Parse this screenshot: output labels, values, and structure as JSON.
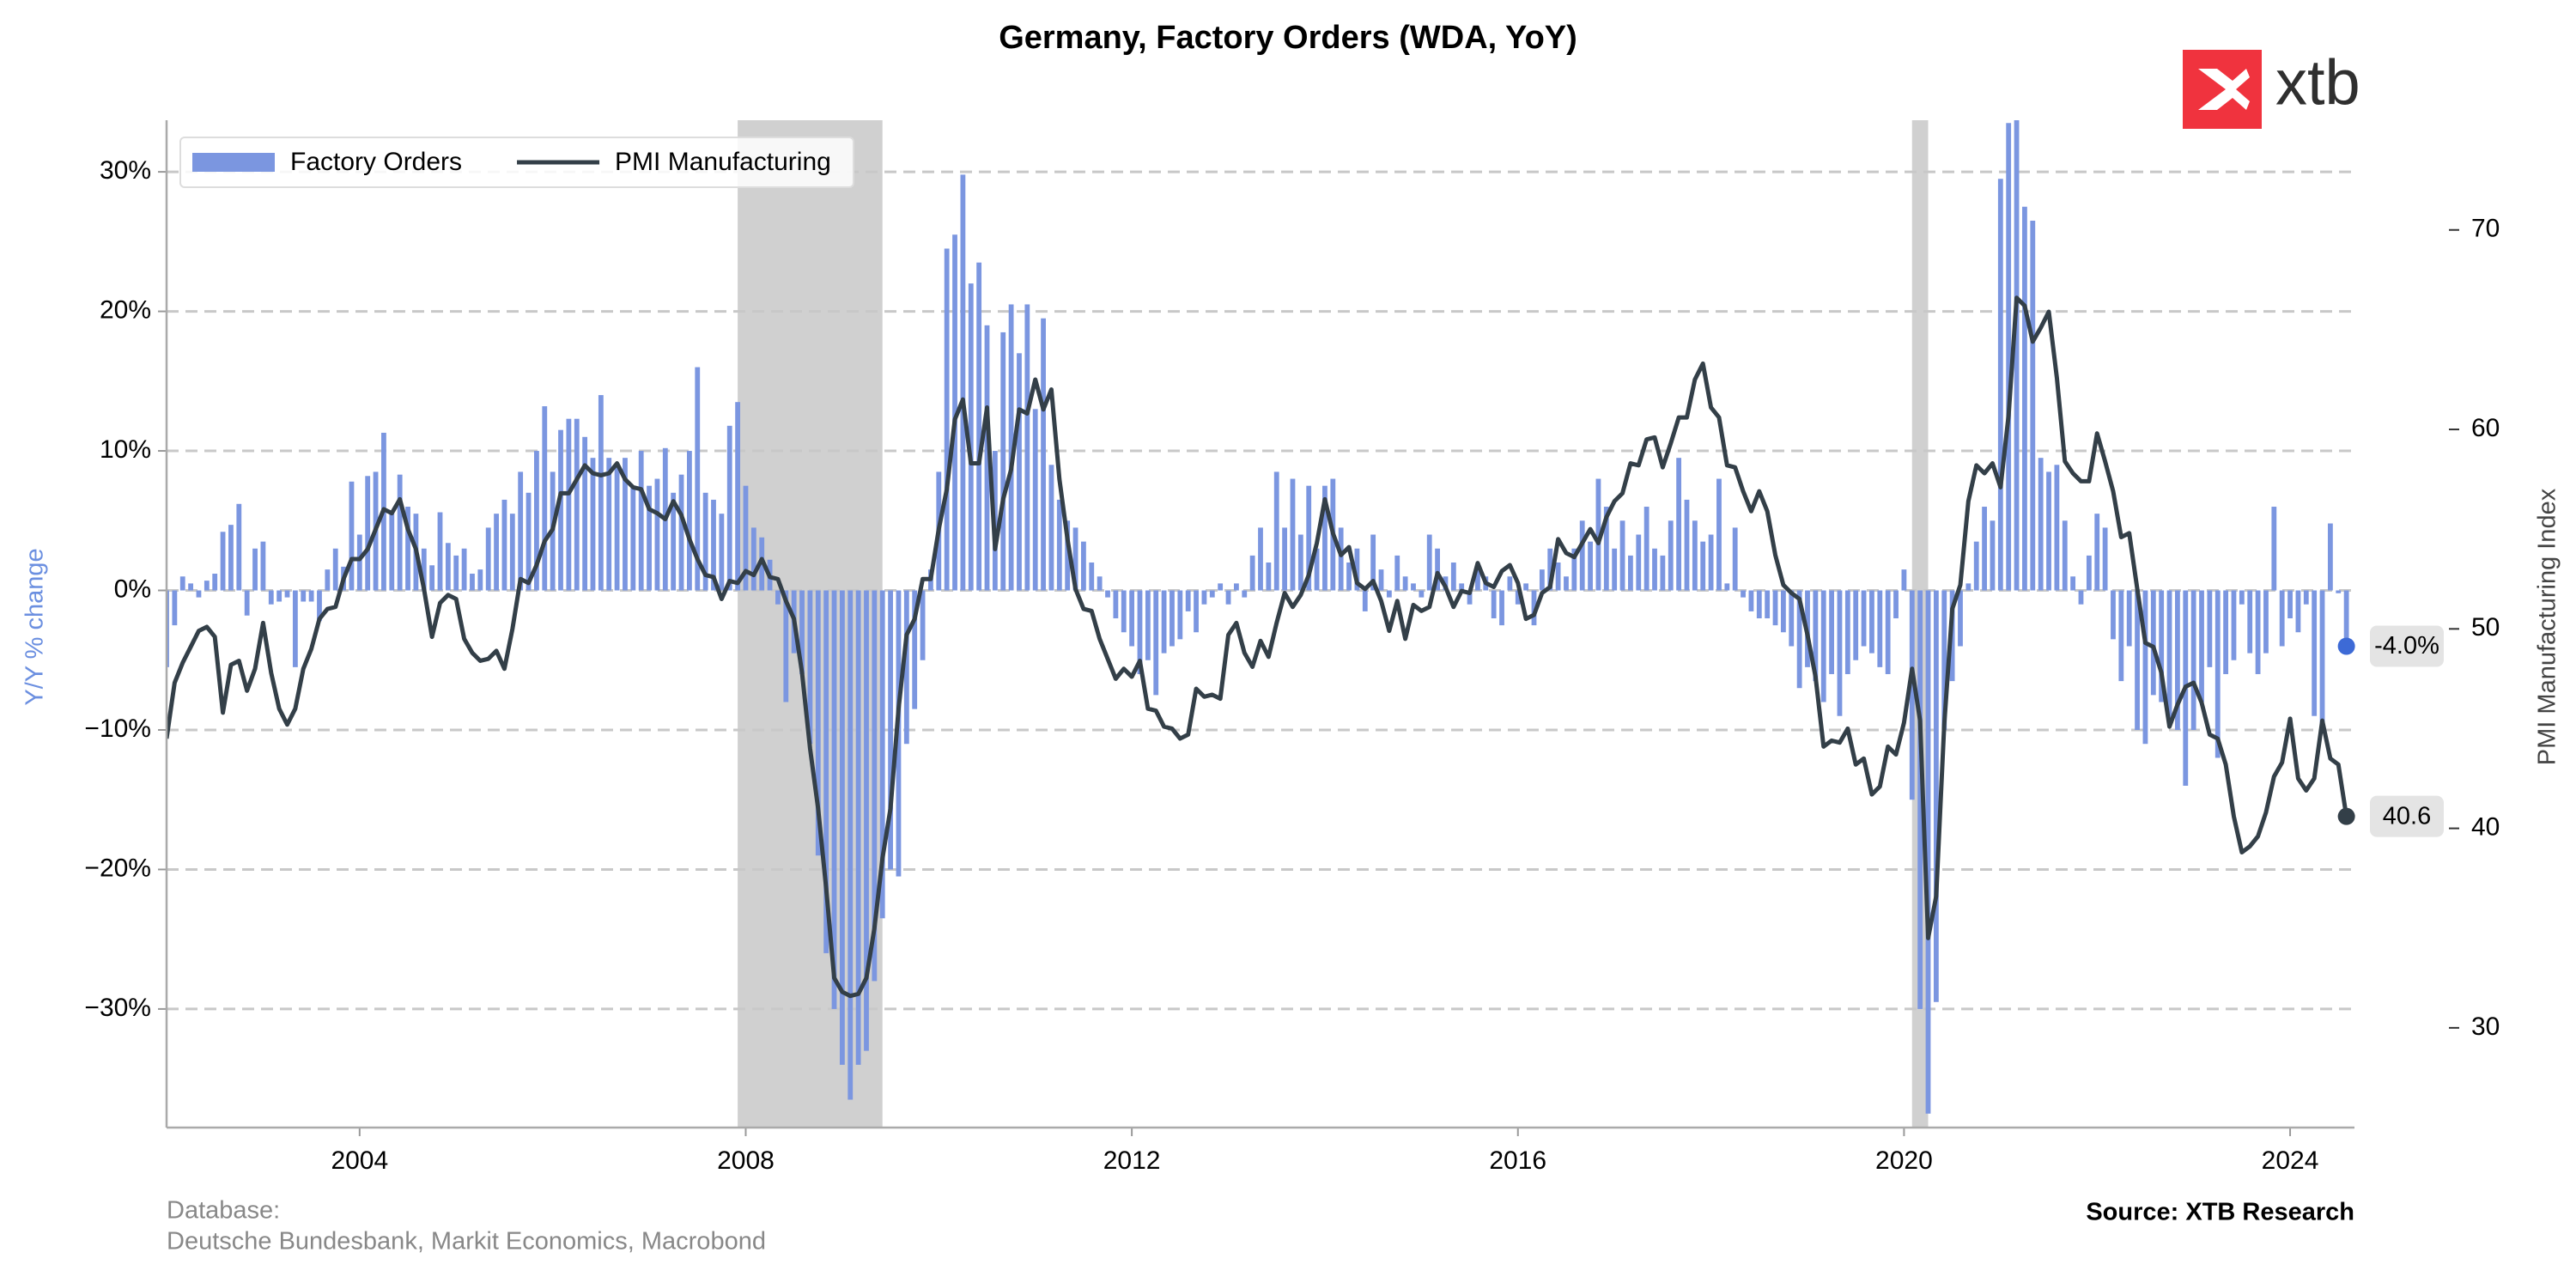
{
  "chart_data": {
    "type": "combo",
    "title": "Germany, Factory Orders (WDA, YoY)",
    "logo": "xtb",
    "ylabel": "Y/Y % change",
    "y2label": "PMI Manufacturing Index",
    "footer_left": [
      "Database:",
      "Deutsche Bundesbank, Markit Economics, Macrobond"
    ],
    "footer_right": "Source: XTB Research",
    "legend": "upper left",
    "grid": true,
    "shaded_periods": [
      [
        "2007-12",
        "2009-06"
      ],
      [
        "2020-02",
        "2020-04"
      ]
    ],
    "shade_color": "#d0d0d0",
    "xlim": [
      "2002-01",
      "2024-09"
    ],
    "xticks": [
      {
        "value": "2004-01",
        "label": "2004"
      },
      {
        "value": "2008-01",
        "label": "2008"
      },
      {
        "value": "2012-01",
        "label": "2012"
      },
      {
        "value": "2016-01",
        "label": "2016"
      },
      {
        "value": "2020-01",
        "label": "2020"
      },
      {
        "value": "2024-01",
        "label": "2024"
      }
    ],
    "ylim": [
      -38.5,
      33.7
    ],
    "yticks": [
      {
        "value": -30,
        "label": "−30%"
      },
      {
        "value": -20,
        "label": "−20%"
      },
      {
        "value": -10,
        "label": "−10%"
      },
      {
        "value": 0,
        "label": "0%"
      },
      {
        "value": 10,
        "label": "10%"
      },
      {
        "value": 20,
        "label": "20%"
      },
      {
        "value": 30,
        "label": "30%"
      }
    ],
    "y2lim": [
      25,
      75.5
    ],
    "y2ticks": [
      30,
      40,
      50,
      60,
      70
    ],
    "x": [
      "2002-01",
      "2002-02",
      "2002-03",
      "2002-04",
      "2002-05",
      "2002-06",
      "2002-07",
      "2002-08",
      "2002-09",
      "2002-10",
      "2002-11",
      "2002-12",
      "2003-01",
      "2003-02",
      "2003-03",
      "2003-04",
      "2003-05",
      "2003-06",
      "2003-07",
      "2003-08",
      "2003-09",
      "2003-10",
      "2003-11",
      "2003-12",
      "2004-01",
      "2004-02",
      "2004-03",
      "2004-04",
      "2004-05",
      "2004-06",
      "2004-07",
      "2004-08",
      "2004-09",
      "2004-10",
      "2004-11",
      "2004-12",
      "2005-01",
      "2005-02",
      "2005-03",
      "2005-04",
      "2005-05",
      "2005-06",
      "2005-07",
      "2005-08",
      "2005-09",
      "2005-10",
      "2005-11",
      "2005-12",
      "2006-01",
      "2006-02",
      "2006-03",
      "2006-04",
      "2006-05",
      "2006-06",
      "2006-07",
      "2006-08",
      "2006-09",
      "2006-10",
      "2006-11",
      "2006-12",
      "2007-01",
      "2007-02",
      "2007-03",
      "2007-04",
      "2007-05",
      "2007-06",
      "2007-07",
      "2007-08",
      "2007-09",
      "2007-10",
      "2007-11",
      "2007-12",
      "2008-01",
      "2008-02",
      "2008-03",
      "2008-04",
      "2008-05",
      "2008-06",
      "2008-07",
      "2008-08",
      "2008-09",
      "2008-10",
      "2008-11",
      "2008-12",
      "2009-01",
      "2009-02",
      "2009-03",
      "2009-04",
      "2009-05",
      "2009-06",
      "2009-07",
      "2009-08",
      "2009-09",
      "2009-10",
      "2009-11",
      "2009-12",
      "2010-01",
      "2010-02",
      "2010-03",
      "2010-04",
      "2010-05",
      "2010-06",
      "2010-07",
      "2010-08",
      "2010-09",
      "2010-10",
      "2010-11",
      "2010-12",
      "2011-01",
      "2011-02",
      "2011-03",
      "2011-04",
      "2011-05",
      "2011-06",
      "2011-07",
      "2011-08",
      "2011-09",
      "2011-10",
      "2011-11",
      "2011-12",
      "2012-01",
      "2012-02",
      "2012-03",
      "2012-04",
      "2012-05",
      "2012-06",
      "2012-07",
      "2012-08",
      "2012-09",
      "2012-10",
      "2012-11",
      "2012-12",
      "2013-01",
      "2013-02",
      "2013-03",
      "2013-04",
      "2013-05",
      "2013-06",
      "2013-07",
      "2013-08",
      "2013-09",
      "2013-10",
      "2013-11",
      "2013-12",
      "2014-01",
      "2014-02",
      "2014-03",
      "2014-04",
      "2014-05",
      "2014-06",
      "2014-07",
      "2014-08",
      "2014-09",
      "2014-10",
      "2014-11",
      "2014-12",
      "2015-01",
      "2015-02",
      "2015-03",
      "2015-04",
      "2015-05",
      "2015-06",
      "2015-07",
      "2015-08",
      "2015-09",
      "2015-10",
      "2015-11",
      "2015-12",
      "2016-01",
      "2016-02",
      "2016-03",
      "2016-04",
      "2016-05",
      "2016-06",
      "2016-07",
      "2016-08",
      "2016-09",
      "2016-10",
      "2016-11",
      "2016-12",
      "2017-01",
      "2017-02",
      "2017-03",
      "2017-04",
      "2017-05",
      "2017-06",
      "2017-07",
      "2017-08",
      "2017-09",
      "2017-10",
      "2017-11",
      "2017-12",
      "2018-01",
      "2018-02",
      "2018-03",
      "2018-04",
      "2018-05",
      "2018-06",
      "2018-07",
      "2018-08",
      "2018-09",
      "2018-10",
      "2018-11",
      "2018-12",
      "2019-01",
      "2019-02",
      "2019-03",
      "2019-04",
      "2019-05",
      "2019-06",
      "2019-07",
      "2019-08",
      "2019-09",
      "2019-10",
      "2019-11",
      "2019-12",
      "2020-01",
      "2020-02",
      "2020-03",
      "2020-04",
      "2020-05",
      "2020-06",
      "2020-07",
      "2020-08",
      "2020-09",
      "2020-10",
      "2020-11",
      "2020-12",
      "2021-01",
      "2021-02",
      "2021-03",
      "2021-04",
      "2021-05",
      "2021-06",
      "2021-07",
      "2021-08",
      "2021-09",
      "2021-10",
      "2021-11",
      "2021-12",
      "2022-01",
      "2022-02",
      "2022-03",
      "2022-04",
      "2022-05",
      "2022-06",
      "2022-07",
      "2022-08",
      "2022-09",
      "2022-10",
      "2022-11",
      "2022-12",
      "2023-01",
      "2023-02",
      "2023-03",
      "2023-04",
      "2023-05",
      "2023-06",
      "2023-07",
      "2023-08",
      "2023-09",
      "2023-10",
      "2023-11",
      "2023-12",
      "2024-01",
      "2024-02",
      "2024-03",
      "2024-04",
      "2024-05",
      "2024-06",
      "2024-07",
      "2024-08"
    ],
    "series": [
      {
        "name": "Factory Orders",
        "type": "bar",
        "axis": "y",
        "color": "#7b96e0",
        "end_color": "#3d6ad6",
        "end_label": "-4.0%",
        "values": [
          -5.5,
          -2.5,
          1,
          0.5,
          -0.5,
          0.7,
          1.2,
          4.2,
          4.7,
          6.2,
          -1.8,
          3.0,
          3.5,
          -1,
          -0.8,
          -0.5,
          -5.5,
          -0.8,
          -0.8,
          -2.2,
          1.5,
          3,
          1.7,
          7.8,
          4,
          8.2,
          8.5,
          11.3,
          5.5,
          8.3,
          6,
          5.5,
          3,
          1.8,
          5.6,
          3.4,
          2.5,
          3,
          1.2,
          1.5,
          4.5,
          5.5,
          6.5,
          5.5,
          8.5,
          7,
          10,
          13.2,
          8.5,
          11.5,
          12.3,
          12.3,
          11,
          9.5,
          14,
          9.5,
          9,
          9.5,
          7.5,
          10,
          7.5,
          8,
          10.2,
          7,
          8.3,
          10,
          16,
          7,
          6.5,
          5.5,
          11.8,
          13.5,
          7.5,
          4.5,
          3.8,
          2.2,
          -1,
          -8,
          -4.5,
          -6,
          -11,
          -19,
          -26,
          -30,
          -34,
          -36.5,
          -34,
          -33,
          -28,
          -23.5,
          -20,
          -20.5,
          -11,
          -8.5,
          -5,
          1.5,
          8.5,
          24.5,
          25.5,
          29.8,
          22,
          23.5,
          19,
          10,
          18.5,
          20.5,
          17,
          20.5,
          13,
          19.5,
          9,
          6.5,
          5,
          4.5,
          3.5,
          2,
          1,
          -0.5,
          -2,
          -3,
          -4,
          -6,
          -5,
          -7.5,
          -4.5,
          -4,
          -3.5,
          -1.5,
          -3,
          -1,
          -0.5,
          0.5,
          -1,
          0.5,
          -0.5,
          2.5,
          4.5,
          2,
          8.5,
          4.5,
          8,
          4,
          7.5,
          3,
          7.5,
          8,
          4.5,
          2,
          3,
          -1.5,
          4,
          1.5,
          -0.5,
          2.5,
          1,
          0.5,
          -0.5,
          4,
          3,
          1,
          2,
          0.5,
          -1,
          1.5,
          1,
          -2,
          -2.5,
          1,
          -1,
          0.5,
          -2.5,
          1.5,
          3,
          2,
          1,
          3,
          5,
          3.5,
          8,
          6,
          3,
          5,
          2.5,
          4,
          6,
          3,
          2.5,
          5,
          9.5,
          6.5,
          5,
          3.5,
          4,
          8,
          0.5,
          4.5,
          -0.5,
          -1.5,
          -2,
          -2,
          -2.5,
          -3,
          -4,
          -7,
          -5.5,
          -6.5,
          -8,
          -6,
          -9,
          -6,
          -5,
          -4,
          -4.5,
          -5.5,
          -6,
          -2,
          1.5,
          -15,
          -30,
          -37.5,
          -29.5,
          -10,
          -6.5,
          -4,
          0.5,
          3.5,
          6,
          5,
          29.5,
          33.5,
          34,
          27.5,
          26.5,
          9.5,
          8.5,
          9,
          5,
          1,
          -1,
          2.5,
          5.5,
          4.5,
          -3.5,
          -6.5,
          -4,
          -10,
          -11,
          -7.5,
          -8,
          -9.5,
          -10,
          -14,
          -10,
          -8,
          -5.5,
          -12,
          -6,
          -5,
          -1,
          -4.5,
          -6,
          -4.5,
          6,
          -4,
          -2,
          -3,
          -1,
          -9,
          -10,
          4.8,
          -0.2,
          -4.0
        ]
      },
      {
        "name": "PMI Manufacturing",
        "type": "line",
        "axis": "y2",
        "color": "#333f48",
        "end_color": "#333f48",
        "end_label": "40.6",
        "values": [
          44.5,
          47.3,
          48.3,
          49.1,
          49.9,
          50.1,
          49.6,
          45.8,
          48.2,
          48.4,
          46.9,
          48.0,
          50.3,
          47.8,
          46,
          45.2,
          46,
          48,
          49,
          50.5,
          51,
          51.1,
          52.5,
          53.5,
          53.5,
          54,
          55,
          56,
          55.8,
          56.5,
          55,
          54,
          52,
          49.6,
          51.3,
          51.7,
          51.5,
          49.5,
          48.8,
          48.4,
          48.5,
          48.9,
          48,
          50,
          52.5,
          52.3,
          53.2,
          54.4,
          55,
          56.8,
          56.8,
          57.5,
          58.2,
          57.8,
          57.7,
          57.8,
          58.3,
          57.5,
          57.1,
          57,
          56,
          55.8,
          55.5,
          56.4,
          55.7,
          54.5,
          53.5,
          52.7,
          52.6,
          51.5,
          52.4,
          52.3,
          52.9,
          52.7,
          53.5,
          52.6,
          52.5,
          51.4,
          50.5,
          47.8,
          44,
          41,
          37,
          32.5,
          31.8,
          31.6,
          31.7,
          32.5,
          35,
          38.5,
          41,
          46,
          49.7,
          50.5,
          52.5,
          52.5,
          55,
          57,
          60.5,
          61.5,
          58.3,
          58.3,
          61.1,
          54,
          56.5,
          58,
          61,
          60.8,
          62.5,
          61,
          62,
          57.5,
          54.5,
          52,
          51,
          50.9,
          49.5,
          48.5,
          47.5,
          48,
          47.6,
          48.4,
          46,
          45.9,
          45.1,
          45,
          44.5,
          44.7,
          47,
          46.6,
          46.7,
          46.5,
          49.7,
          50.3,
          48.8,
          48.1,
          49.4,
          48.6,
          50.3,
          51.8,
          51.1,
          51.7,
          52.7,
          54.3,
          56.5,
          54.8,
          53.7,
          54.1,
          52.3,
          52,
          52.4,
          51.4,
          49.9,
          51.4,
          49.5,
          51.2,
          50.9,
          51.1,
          52.8,
          52.1,
          51.1,
          51.9,
          51.8,
          53.3,
          52.3,
          52.1,
          52.9,
          53.2,
          52.3,
          50.5,
          50.7,
          51.8,
          52.1,
          54.5,
          53.8,
          53.6,
          54.3,
          55,
          54.3,
          55.6,
          56.4,
          56.8,
          58.3,
          58.2,
          59.5,
          59.6,
          58.1,
          59.3,
          60.6,
          60.6,
          62.5,
          63.3,
          61.1,
          60.6,
          58.2,
          58.1,
          56.9,
          55.9,
          56.9,
          55.9,
          53.7,
          52.2,
          51.8,
          51.5,
          49.7,
          47.6,
          44.1,
          44.4,
          44.3,
          45,
          43.2,
          43.5,
          41.7,
          42.1,
          44.1,
          43.7,
          45.3,
          48,
          45.4,
          34.5,
          36.6,
          45.2,
          51,
          52.2,
          56.4,
          58.2,
          57.8,
          58.3,
          57.1,
          60.7,
          66.6,
          66.2,
          64.4,
          65.1,
          65.9,
          62.6,
          58.4,
          57.8,
          57.4,
          57.4,
          59.8,
          58.4,
          56.9,
          54.6,
          54.8,
          52,
          49.3,
          49.1,
          47.8,
          45.1,
          46.2,
          47.1,
          47.3,
          46.3,
          44.7,
          44.5,
          43.2,
          40.6,
          38.8,
          39.1,
          39.6,
          40.8,
          42.6,
          43.3,
          45.5,
          42.5,
          41.9,
          42.5,
          45.4,
          43.5,
          43.2,
          40.6
        ]
      }
    ]
  }
}
